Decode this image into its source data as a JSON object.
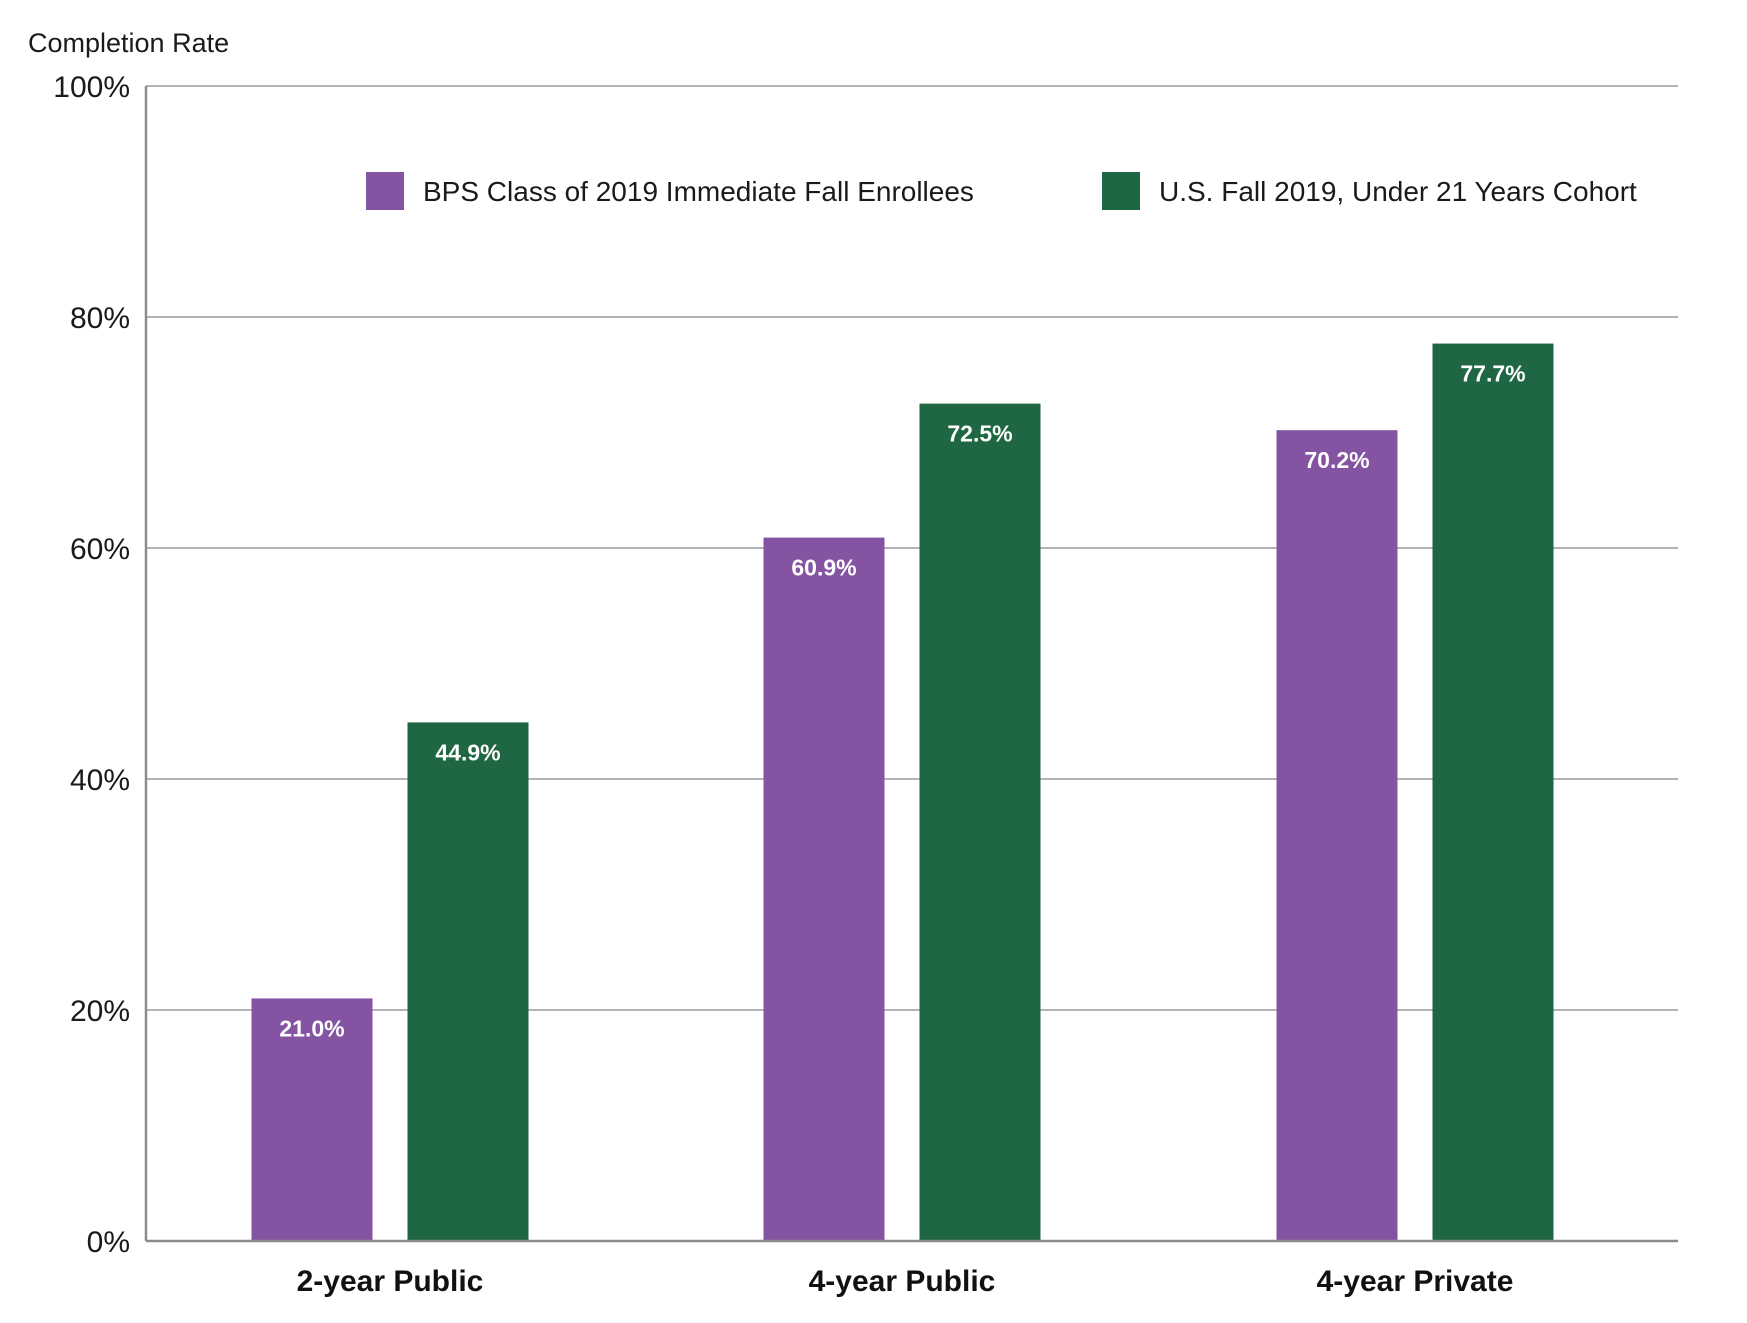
{
  "chart_data": {
    "type": "bar",
    "ylabel": "Completion Rate",
    "ylim": [
      0,
      100
    ],
    "yticks": [
      "0%",
      "20%",
      "40%",
      "60%",
      "80%",
      "100%"
    ],
    "ytick_values": [
      0,
      20,
      40,
      60,
      80,
      100
    ],
    "grid": true,
    "legend_position": "top",
    "categories": [
      "2-year Public",
      "4-year Public",
      "4-year Private"
    ],
    "series": [
      {
        "name": "BPS Class of 2019 Immediate Fall Enrollees",
        "color": "#8454a3",
        "values": [
          21.0,
          60.9,
          70.2
        ],
        "labels": [
          "21.0%",
          "60.9%",
          "70.2%"
        ]
      },
      {
        "name": "U.S. Fall 2019, Under 21 Years Cohort",
        "color": "#1f6642",
        "values": [
          44.9,
          72.5,
          77.7
        ],
        "labels": [
          "44.9%",
          "72.5%",
          "77.7%"
        ]
      }
    ]
  }
}
